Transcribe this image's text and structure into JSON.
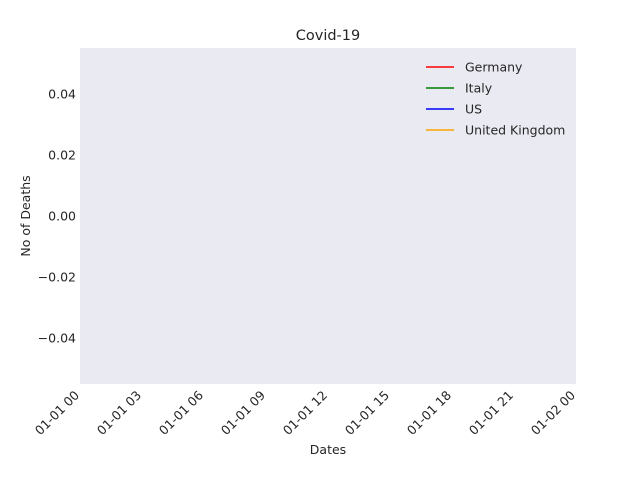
{
  "chart_data": {
    "type": "line",
    "title": "Covid-19",
    "xlabel": "Dates",
    "ylabel": "No of Deaths",
    "x_ticks": [
      "01-01 00",
      "01-01 03",
      "01-01 06",
      "01-01 09",
      "01-01 12",
      "01-01 15",
      "01-01 18",
      "01-01 21",
      "01-02 00"
    ],
    "y_ticks": [
      0.04,
      0.02,
      0.0,
      -0.02,
      -0.04
    ],
    "y_tick_labels": [
      "0.04",
      "0.02",
      "0.00",
      "−0.02",
      "−0.04"
    ],
    "ylim": [
      -0.055,
      0.055
    ],
    "grid": false,
    "legend_position": "upper-right",
    "series": [
      {
        "name": "Germany",
        "color": "#ff0000",
        "values": []
      },
      {
        "name": "Italy",
        "color": "#008000",
        "values": []
      },
      {
        "name": "US",
        "color": "#0000ff",
        "values": []
      },
      {
        "name": "United Kingdom",
        "color": "#ffa500",
        "values": []
      }
    ],
    "plot_background": "#eaeaf2"
  }
}
